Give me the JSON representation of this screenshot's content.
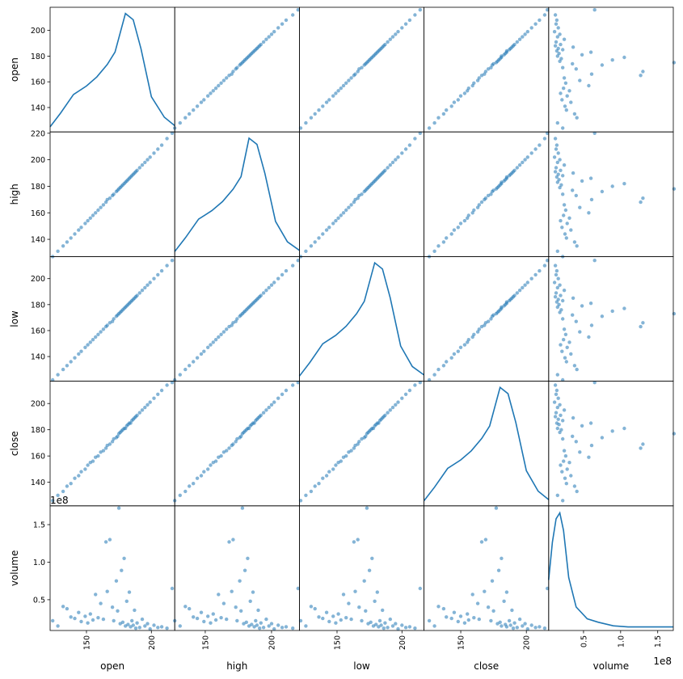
{
  "chart_data": {
    "type": "scatter_matrix",
    "color": "#1f77b4",
    "variables": [
      {
        "name": "open",
        "values": [
          124,
          128,
          132,
          135,
          138,
          141,
          144,
          146,
          149,
          151,
          153,
          155,
          157,
          159,
          161,
          163,
          165,
          166,
          168,
          170,
          171,
          173,
          174,
          175,
          176,
          177,
          178,
          179,
          180,
          181,
          182,
          183,
          184,
          185,
          186,
          187,
          188,
          189,
          191,
          193,
          195,
          197,
          199,
          202,
          205,
          208,
          212,
          216
        ],
        "xlim": [
          122,
          218
        ],
        "ylim": [
          121,
          218
        ],
        "xticks": [
          150,
          200
        ],
        "yticks": [
          140,
          160,
          180,
          200
        ],
        "kde_x": [
          122,
          130,
          140,
          150,
          158,
          166,
          172,
          180,
          186,
          192,
          200,
          210,
          218
        ],
        "kde_y": [
          0.0009,
          0.0033,
          0.0066,
          0.0081,
          0.0097,
          0.0119,
          0.0141,
          0.0209,
          0.0198,
          0.0147,
          0.0062,
          0.0026,
          0.0011
        ],
        "kde_ylim": [
          0,
          0.022
        ]
      },
      {
        "name": "high",
        "values": [
          127,
          131,
          135,
          138,
          141,
          144,
          147,
          149,
          152,
          154,
          156,
          158,
          160,
          162,
          164,
          166,
          168,
          170,
          171,
          173,
          174,
          176,
          177,
          178,
          179,
          180,
          181,
          182,
          183,
          184,
          185,
          186,
          187,
          188,
          189,
          190,
          191,
          192,
          194,
          196,
          198,
          200,
          202,
          205,
          208,
          211,
          216,
          220
        ],
        "xlim": [
          127,
          221
        ],
        "ylim": [
          127,
          221
        ],
        "xticks": [
          150,
          200
        ],
        "yticks": [
          140,
          160,
          180,
          200,
          220
        ],
        "kde_x": [
          127,
          135,
          145,
          155,
          163,
          171,
          177,
          183,
          189,
          195,
          203,
          212,
          221
        ],
        "kde_y": [
          0.0009,
          0.0033,
          0.0066,
          0.0081,
          0.0097,
          0.0119,
          0.0141,
          0.0209,
          0.0198,
          0.0147,
          0.0062,
          0.0026,
          0.0011
        ],
        "kde_ylim": [
          0,
          0.022
        ]
      },
      {
        "name": "low",
        "values": [
          122,
          126,
          130,
          133,
          136,
          139,
          142,
          144,
          147,
          149,
          151,
          153,
          155,
          157,
          159,
          161,
          163,
          164,
          166,
          167,
          169,
          171,
          172,
          173,
          174,
          175,
          176,
          177,
          178,
          179,
          180,
          181,
          182,
          183,
          184,
          185,
          186,
          187,
          189,
          191,
          193,
          195,
          197,
          200,
          203,
          206,
          210,
          214
        ],
        "xlim": [
          121,
          217
        ],
        "ylim": [
          121,
          217
        ],
        "xticks": [
          150,
          200
        ],
        "yticks": [
          140,
          160,
          180,
          200
        ],
        "kde_x": [
          121,
          129,
          139,
          149,
          157,
          165,
          171,
          179,
          185,
          191,
          199,
          208,
          217
        ],
        "kde_y": [
          0.0009,
          0.0033,
          0.0066,
          0.0081,
          0.0097,
          0.0119,
          0.0141,
          0.0209,
          0.0198,
          0.0147,
          0.0062,
          0.0026,
          0.0011
        ],
        "kde_ylim": [
          0,
          0.022
        ]
      },
      {
        "name": "close",
        "values": [
          126,
          130,
          133,
          137,
          139,
          143,
          145,
          148,
          150,
          153,
          155,
          156,
          159,
          160,
          163,
          164,
          166,
          168,
          169,
          171,
          173,
          174,
          175,
          177,
          178,
          179,
          180,
          181,
          181,
          183,
          184,
          185,
          185,
          187,
          188,
          189,
          190,
          191,
          193,
          195,
          197,
          199,
          201,
          204,
          207,
          210,
          214,
          216
        ],
        "xlim": [
          122,
          217
        ],
        "ylim": [
          122,
          217
        ],
        "xticks": [
          150,
          200
        ],
        "yticks": [
          140,
          160,
          180,
          200
        ],
        "kde_x": [
          122,
          130,
          140,
          150,
          158,
          166,
          172,
          180,
          186,
          192,
          200,
          209,
          217
        ],
        "kde_y": [
          0.0009,
          0.0033,
          0.0066,
          0.0081,
          0.0097,
          0.0119,
          0.0141,
          0.0209,
          0.0198,
          0.0147,
          0.0062,
          0.0026,
          0.0011
        ],
        "kde_ylim": [
          0,
          0.022
        ]
      },
      {
        "name": "volume",
        "values": [
          0.22,
          0.15,
          0.41,
          0.38,
          0.27,
          0.25,
          0.33,
          0.21,
          0.28,
          0.19,
          0.31,
          0.23,
          0.57,
          0.26,
          0.45,
          0.24,
          1.27,
          0.61,
          1.3,
          0.4,
          0.22,
          0.75,
          0.35,
          1.72,
          0.18,
          0.89,
          0.2,
          1.05,
          0.15,
          0.48,
          0.17,
          0.6,
          0.14,
          0.22,
          0.16,
          0.36,
          0.12,
          0.19,
          0.13,
          0.24,
          0.15,
          0.18,
          0.11,
          0.16,
          0.13,
          0.14,
          0.12,
          0.65
        ],
        "offset_label": "1e8",
        "xlim": [
          0.03,
          1.71
        ],
        "ylim": [
          0.09,
          1.75
        ],
        "xticks": [
          0.5,
          {
            "value": 1,
            "label": "1.0"
          },
          1.5
        ],
        "yticks": [
          0.5,
          {
            "value": 1,
            "label": "1.0"
          },
          1.5
        ],
        "kde_x": [
          0.03,
          0.08,
          0.13,
          0.18,
          0.23,
          0.3,
          0.4,
          0.55,
          0.7,
          0.9,
          1.1,
          1.3,
          1.5,
          1.71
        ],
        "kde_y": [
          2.15,
          3.75,
          4.75,
          5.0,
          4.25,
          2.25,
          1.0,
          0.5,
          0.35,
          0.2,
          0.15,
          0.15,
          0.15,
          0.15
        ],
        "kde_ylim": [
          0,
          5.3
        ]
      }
    ]
  }
}
